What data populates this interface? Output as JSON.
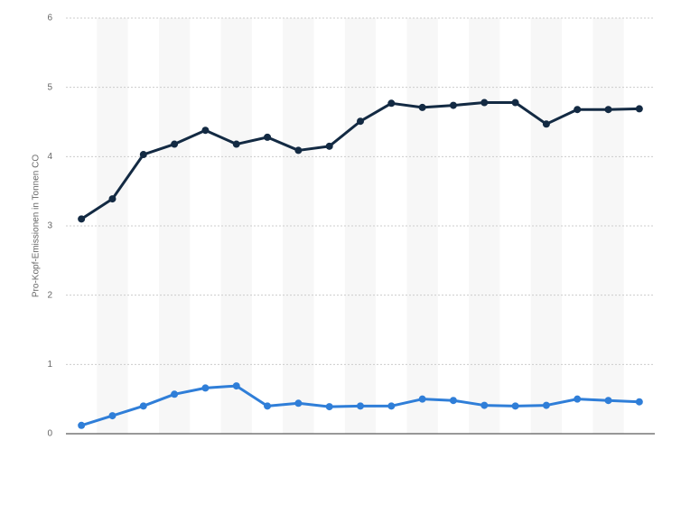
{
  "chart_data": {
    "type": "line",
    "y_label": "Pro-Kopf-Emissionen in Tonnen CO",
    "categories": [
      null,
      null,
      null,
      null,
      null,
      null,
      null,
      null,
      null,
      null,
      null,
      null,
      null,
      null,
      null,
      null,
      null,
      null,
      null
    ],
    "series": [
      {
        "color": "#132a43",
        "values": [
          3.1,
          3.39,
          4.03,
          4.18,
          4.38,
          4.18,
          4.28,
          4.09,
          4.15,
          4.51,
          4.77,
          4.71,
          4.74,
          4.78,
          4.78,
          4.47,
          4.68,
          4.68,
          4.69
        ]
      },
      {
        "color": "#2f7ed8",
        "values": [
          0.12,
          0.26,
          0.4,
          0.57,
          0.66,
          0.69,
          0.4,
          0.44,
          0.39,
          0.4,
          0.4,
          0.5,
          0.48,
          0.41,
          0.4,
          0.41,
          0.5,
          0.48,
          0.46
        ]
      }
    ],
    "ylim": [
      0,
      6
    ],
    "yticks": [
      0,
      1,
      2,
      3,
      4,
      5,
      6
    ],
    "grid": true
  }
}
